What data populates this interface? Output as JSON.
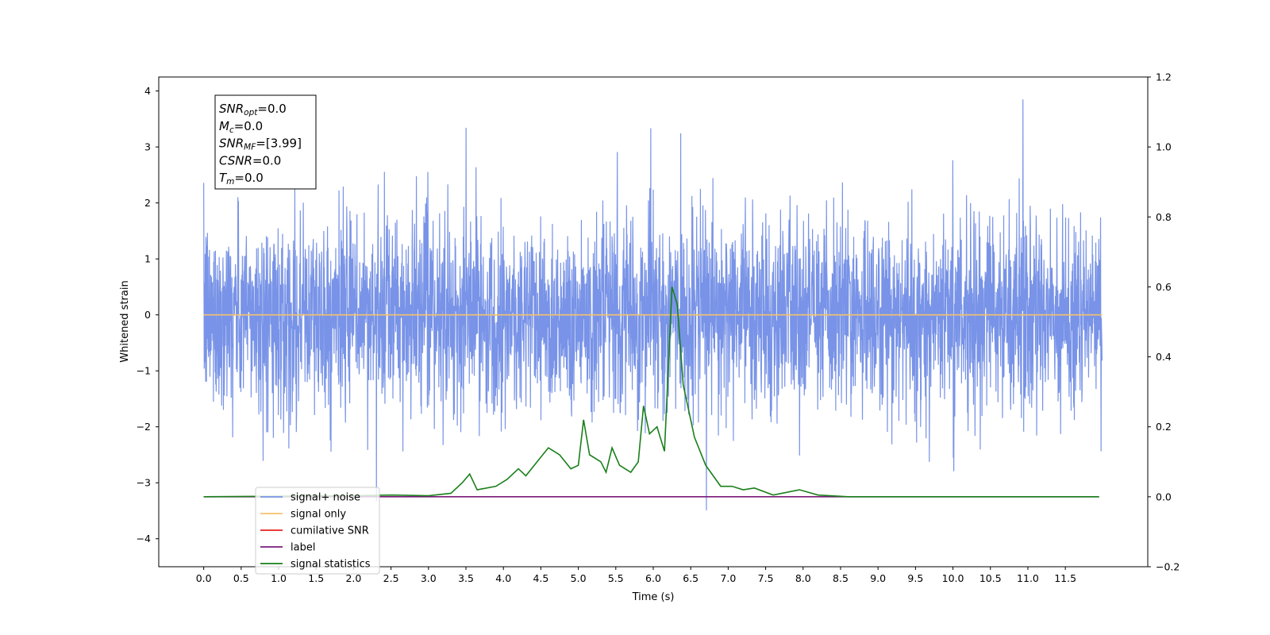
{
  "chart_data": {
    "type": "line",
    "title": "",
    "xlabel": "Time (s)",
    "ylabel": "Whitened strain",
    "xlim": [
      -0.6,
      12.6
    ],
    "ylim": [
      -4.5,
      4.25
    ],
    "y2lim": [
      -0.2,
      1.2
    ],
    "grid": false,
    "legend_position": "lower-left",
    "x_ticks": [
      "0.0",
      "0.5",
      "1.0",
      "1.5",
      "2.0",
      "2.5",
      "3.0",
      "3.5",
      "4.0",
      "4.5",
      "5.0",
      "5.5",
      "6.0",
      "6.5",
      "7.0",
      "7.5",
      "8.0",
      "8.5",
      "9.0",
      "9.5",
      "10.0",
      "10.5",
      "11.0",
      "11.5"
    ],
    "y_ticks": [
      "−4",
      "−3",
      "−2",
      "−1",
      "0",
      "1",
      "2",
      "3",
      "4"
    ],
    "y2_ticks": [
      "−0.2",
      "0.0",
      "0.2",
      "0.4",
      "0.6",
      "0.8",
      "1.0",
      "1.2"
    ],
    "annotation": [
      {
        "var": "SNR",
        "sub": "opt",
        "value": "=0.0"
      },
      {
        "var": "M",
        "sub": "c",
        "value": "=0.0"
      },
      {
        "var": "SNR",
        "sub": "MF",
        "value": "=[3.99]"
      },
      {
        "var": "CSNR",
        "sub": "",
        "value": "=0.0"
      },
      {
        "var": "T",
        "sub": "m",
        "value": "=0.0"
      }
    ],
    "series": [
      {
        "name": "signal+ noise",
        "color": "#7893e7",
        "axis": "left",
        "noise": {
          "t_start": 0.0,
          "t_end": 11.99,
          "typical_range": [
            -1.9,
            2.1
          ],
          "extreme_range": [
            -4.1,
            3.85
          ]
        }
      },
      {
        "name": "signal only",
        "color": "#f5c26b",
        "axis": "left",
        "x": [
          0.0,
          11.99
        ],
        "y": [
          0.0,
          0.0
        ]
      },
      {
        "name": "cumilative SNR",
        "color": "#e8201f",
        "axis": "right",
        "x": [],
        "y": []
      },
      {
        "name": "label",
        "color": "#7a1a7a",
        "axis": "right",
        "x": [
          0.0,
          11.95
        ],
        "y": [
          0.0,
          0.0
        ]
      },
      {
        "name": "signal statistics",
        "color": "#1a7f1a",
        "axis": "right",
        "x": [
          0.0,
          2.0,
          2.5,
          3.0,
          3.3,
          3.45,
          3.55,
          3.65,
          3.9,
          4.05,
          4.2,
          4.3,
          4.45,
          4.6,
          4.75,
          4.9,
          5.0,
          5.07,
          5.15,
          5.3,
          5.37,
          5.45,
          5.55,
          5.7,
          5.8,
          5.87,
          5.95,
          6.05,
          6.15,
          6.25,
          6.32,
          6.4,
          6.55,
          6.7,
          6.9,
          7.05,
          7.2,
          7.35,
          7.6,
          7.95,
          8.2,
          8.6,
          11.95
        ],
        "y": [
          0.0,
          0.003,
          0.005,
          0.003,
          0.01,
          0.04,
          0.065,
          0.02,
          0.03,
          0.05,
          0.08,
          0.06,
          0.1,
          0.14,
          0.12,
          0.08,
          0.09,
          0.22,
          0.12,
          0.1,
          0.07,
          0.14,
          0.09,
          0.07,
          0.1,
          0.26,
          0.18,
          0.2,
          0.13,
          0.6,
          0.55,
          0.32,
          0.17,
          0.09,
          0.03,
          0.03,
          0.02,
          0.025,
          0.005,
          0.02,
          0.005,
          0.0,
          0.0
        ]
      }
    ]
  }
}
